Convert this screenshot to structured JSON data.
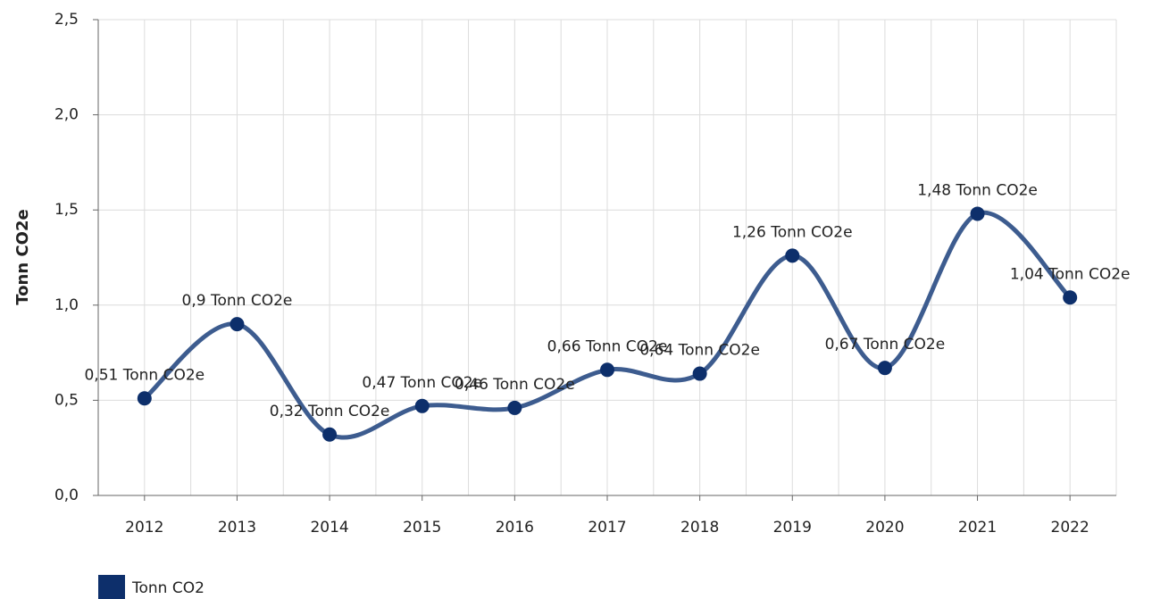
{
  "chart_data": {
    "type": "line",
    "y_axis_label": "Tonn CO2e",
    "categories": [
      "2012",
      "2013",
      "2014",
      "2015",
      "2016",
      "2017",
      "2018",
      "2019",
      "2020",
      "2021",
      "2022"
    ],
    "series": [
      {
        "name": "Tonn CO2",
        "color": "#0d2f6b",
        "line_color": "#3d5c8f",
        "values": [
          0.51,
          0.9,
          0.32,
          0.47,
          0.46,
          0.66,
          0.64,
          1.26,
          0.67,
          1.48,
          1.04
        ],
        "value_labels": [
          "0,51 Tonn CO2e",
          "0,9 Tonn CO2e",
          "0,32 Tonn CO2e",
          "0,47 Tonn CO2e",
          "0,46 Tonn CO2e",
          "0,66 Tonn CO2e",
          "0,64 Tonn CO2e",
          "1,26 Tonn CO2e",
          "0,67 Tonn CO2e",
          "1,48 Tonn CO2e",
          "1,04 Tonn CO2e"
        ]
      }
    ],
    "ylim": [
      0,
      2.5
    ],
    "yticks": [
      {
        "value": 0,
        "label": "0,0"
      },
      {
        "value": 0.5,
        "label": "0,5"
      },
      {
        "value": 1,
        "label": "1,0"
      },
      {
        "value": 1.5,
        "label": "1,5"
      },
      {
        "value": 2,
        "label": "2,0"
      },
      {
        "value": 2.5,
        "label": "2,5"
      }
    ],
    "grid": true,
    "legend": "bottom-left"
  }
}
